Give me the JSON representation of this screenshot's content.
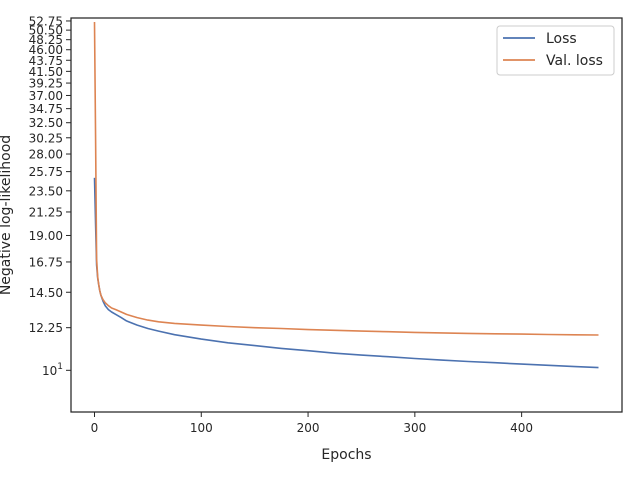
{
  "chart_data": {
    "type": "line",
    "title": "",
    "xlabel": "Epochs",
    "ylabel": "Negative log-likelihood",
    "xlim": [
      -22,
      494
    ],
    "ylim": [
      8.2,
      53.5
    ],
    "yscale": "log",
    "x_ticks": [
      0,
      100,
      200,
      300,
      400
    ],
    "y_ticks": [
      {
        "value": 10,
        "label": "10",
        "sup": "1"
      },
      {
        "value": 12.25,
        "label": "12.25"
      },
      {
        "value": 14.5,
        "label": "14.50"
      },
      {
        "value": 16.75,
        "label": "16.75"
      },
      {
        "value": 19.0,
        "label": "19.00"
      },
      {
        "value": 21.25,
        "label": "21.25"
      },
      {
        "value": 23.5,
        "label": "23.50"
      },
      {
        "value": 25.75,
        "label": "25.75"
      },
      {
        "value": 28.0,
        "label": "28.00"
      },
      {
        "value": 30.25,
        "label": "30.25"
      },
      {
        "value": 32.5,
        "label": "32.50"
      },
      {
        "value": 34.75,
        "label": "34.75"
      },
      {
        "value": 37.0,
        "label": "37.00"
      },
      {
        "value": 39.25,
        "label": "39.25"
      },
      {
        "value": 41.5,
        "label": "41.50"
      },
      {
        "value": 43.75,
        "label": "43.75"
      },
      {
        "value": 46.0,
        "label": "46.00"
      },
      {
        "value": 48.25,
        "label": "48.25"
      },
      {
        "value": 50.5,
        "label": "50.50"
      },
      {
        "value": 52.75,
        "label": "52.75"
      }
    ],
    "grid": false,
    "legend_position": "top-right",
    "series": [
      {
        "name": "Loss",
        "color": "#4c72b0",
        "x": [
          0,
          1,
          2,
          3,
          4,
          5,
          6,
          8,
          10,
          13,
          16,
          20,
          25,
          30,
          40,
          50,
          60,
          75,
          100,
          125,
          150,
          175,
          200,
          225,
          250,
          275,
          300,
          325,
          350,
          375,
          400,
          425,
          450,
          472
        ],
        "y": [
          25.0,
          20.0,
          16.5,
          15.5,
          15.0,
          14.6,
          14.3,
          13.9,
          13.6,
          13.35,
          13.2,
          13.05,
          12.85,
          12.65,
          12.4,
          12.2,
          12.05,
          11.85,
          11.6,
          11.4,
          11.25,
          11.1,
          10.98,
          10.85,
          10.75,
          10.67,
          10.58,
          10.5,
          10.43,
          10.37,
          10.3,
          10.24,
          10.18,
          10.13
        ]
      },
      {
        "name": "Val. loss",
        "color": "#dd8452",
        "x": [
          0,
          1,
          2,
          3,
          4,
          5,
          6,
          8,
          10,
          13,
          16,
          20,
          25,
          30,
          40,
          50,
          60,
          75,
          100,
          125,
          150,
          175,
          200,
          225,
          250,
          275,
          300,
          325,
          350,
          375,
          400,
          425,
          450,
          472
        ],
        "y": [
          52.5,
          30.0,
          17.0,
          15.6,
          15.0,
          14.6,
          14.3,
          14.0,
          13.8,
          13.6,
          13.45,
          13.35,
          13.2,
          13.05,
          12.85,
          12.7,
          12.6,
          12.5,
          12.4,
          12.32,
          12.25,
          12.2,
          12.14,
          12.1,
          12.05,
          12.02,
          11.98,
          11.95,
          11.92,
          11.9,
          11.88,
          11.86,
          11.84,
          11.83
        ]
      }
    ]
  }
}
